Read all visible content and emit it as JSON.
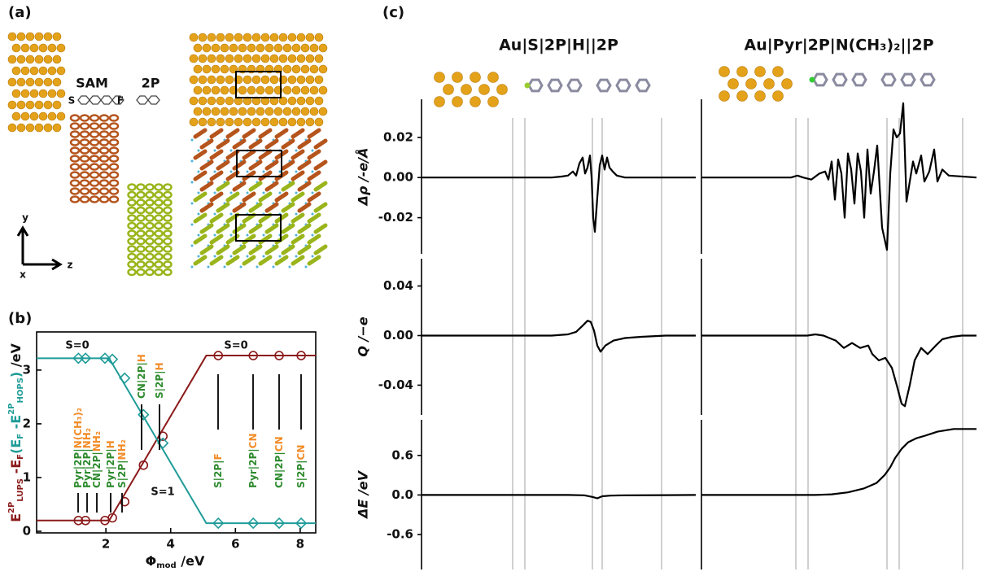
{
  "panel_labels": [
    "(a)",
    "(b)",
    "(c)"
  ],
  "panel_a": {
    "sam": "SAM",
    "two_p": "2P",
    "s_atom": "S",
    "f_atom": "F",
    "axes": [
      "y",
      "z",
      "x"
    ]
  },
  "chart_data": [
    {
      "type": "scatter",
      "xlabel_parts": [
        {
          "text": "Φ",
          "style": ""
        },
        {
          "text": "mod",
          "style": "sub"
        },
        {
          "text": " /eV",
          "style": ""
        }
      ],
      "ylabel_parts": [
        {
          "text": "E",
          "style": "",
          "color": "#8b1a1a"
        },
        {
          "text": "2P",
          "style": "sup",
          "color": "#8b1a1a"
        },
        {
          "text": "LUPS",
          "style": "sub",
          "color": "#8b1a1a"
        },
        {
          "text": " -E",
          "style": "",
          "color": "#8b1a1a"
        },
        {
          "text": "F",
          "style": "sub",
          "color": "#8b1a1a"
        },
        {
          "text": "(E",
          "style": "",
          "color": "#1f9c98"
        },
        {
          "text": "F",
          "style": "sub",
          "color": "#1f9c98"
        },
        {
          "text": " -E",
          "style": "",
          "color": "#1f9c98"
        },
        {
          "text": "2P",
          "style": "sup",
          "color": "#1f9c98"
        },
        {
          "text": "HOPS",
          "style": "sub",
          "color": "#1f9c98"
        },
        {
          "text": ")",
          "style": "",
          "color": "#1f9c98"
        },
        {
          "text": " /eV",
          "style": "",
          "color": "#111111"
        }
      ],
      "xlim": [
        -0.14,
        8.48
      ],
      "ylim": [
        -0.03,
        3.71
      ],
      "xticks": [
        2,
        4,
        6,
        8
      ],
      "yticks": [
        0,
        1,
        2,
        3
      ],
      "series": [
        {
          "color": "#8b1a1a",
          "marker": "circle",
          "x": [
            1.15,
            1.37,
            1.97,
            2.2,
            2.58,
            3.16,
            3.76,
            5.47,
            6.55,
            7.35,
            8.03
          ],
          "values": [
            0.2,
            0.2,
            0.2,
            0.25,
            0.55,
            1.23,
            1.77,
            3.27,
            3.27,
            3.27,
            3.27
          ]
        },
        {
          "color": "#1f9c98",
          "marker": "diamond",
          "x": [
            1.15,
            1.37,
            1.97,
            2.2,
            2.58,
            3.16,
            3.76,
            5.47,
            6.55,
            7.35,
            8.03
          ],
          "values": [
            3.22,
            3.22,
            3.22,
            3.2,
            2.85,
            2.17,
            1.64,
            0.15,
            0.15,
            0.15,
            0.15
          ]
        }
      ],
      "fit_lines": [
        {
          "color": "#8b1a1a",
          "x": [
            -0.14,
            2.1,
            5.1,
            8.48
          ],
          "values": [
            0.2,
            0.2,
            3.27,
            3.27
          ]
        },
        {
          "color": "#1f9c98",
          "x": [
            -0.14,
            2.1,
            5.1,
            8.48
          ],
          "values": [
            3.22,
            3.22,
            0.15,
            0.15
          ]
        }
      ],
      "annotations": [
        "S=0",
        "S=0",
        "S=1"
      ],
      "labels": [
        [
          {
            "text": "Pyr|2P|",
            "color": "#2e8b2e"
          },
          {
            "text": "N(CH₃)₂",
            "color": "#f28c28"
          }
        ],
        [
          {
            "text": "Pyr|2P|",
            "color": "#2e8b2e"
          },
          {
            "text": "NH₂",
            "color": "#f28c28"
          }
        ],
        [
          {
            "text": "CN|2P|",
            "color": "#2e8b2e"
          },
          {
            "text": "NH₂",
            "color": "#f28c28"
          }
        ],
        [
          {
            "text": "Pyr|2P|",
            "color": "#2e8b2e"
          },
          {
            "text": "H",
            "color": "#f28c28"
          }
        ],
        [
          {
            "text": "S|2P|",
            "color": "#2e8b2e"
          },
          {
            "text": "NH₂",
            "color": "#f28c28"
          }
        ],
        [
          {
            "text": "CN|2P|",
            "color": "#2e8b2e"
          },
          {
            "text": "H",
            "color": "#f28c28"
          }
        ],
        [
          {
            "text": "S|2P|",
            "color": "#2e8b2e"
          },
          {
            "text": "H",
            "color": "#f28c28"
          }
        ],
        [
          {
            "text": "S|2P|",
            "color": "#2e8b2e"
          },
          {
            "text": "F",
            "color": "#f28c28"
          }
        ],
        [
          {
            "text": "Pyr|2P|",
            "color": "#2e8b2e"
          },
          {
            "text": "CN",
            "color": "#f28c28"
          }
        ],
        [
          {
            "text": "CN|2P|",
            "color": "#2e8b2e"
          },
          {
            "text": "CN",
            "color": "#f28c28"
          }
        ],
        [
          {
            "text": "S|2P|",
            "color": "#2e8b2e"
          },
          {
            "text": "CN",
            "color": "#f28c28"
          }
        ]
      ]
    },
    {
      "type": "line",
      "title": "Au|S|2P|H||2P",
      "ylabel": "Δρ /-e/Å",
      "color": "#000000",
      "xlim": [
        0,
        337
      ],
      "ylim": [
        -0.038,
        0.039
      ],
      "yticks": [
        0.02,
        {
          "value": 0,
          "label": "0.00"
        },
        -0.02
      ],
      "x": [
        0,
        160,
        172,
        180,
        186,
        190,
        194,
        198,
        201,
        204,
        207,
        209,
        211,
        213,
        216,
        219,
        222,
        225,
        228,
        231,
        235,
        240,
        250,
        337
      ],
      "values": [
        0,
        0,
        0.0005,
        0.001,
        0.003,
        0.001,
        0.007,
        0.01,
        0.002,
        0.005,
        0.011,
        0,
        -0.02,
        -0.027,
        -0.01,
        0.006,
        0.011,
        0.004,
        0.01,
        0.005,
        0.003,
        0.001,
        0,
        0
      ]
    },
    {
      "type": "line",
      "title": "Au|Pyr|2P|N(CH₃)₂||2P",
      "color": "#000000",
      "xlim": [
        0,
        338
      ],
      "ylim": [
        -0.038,
        0.039
      ],
      "x": [
        0,
        110,
        118,
        125,
        135,
        145,
        152,
        156,
        160,
        164,
        168,
        172,
        176,
        180,
        184,
        188,
        192,
        196,
        200,
        204,
        208,
        212,
        216,
        222,
        228,
        232,
        236,
        240,
        244,
        248,
        252,
        256,
        260,
        264,
        270,
        274,
        280,
        286,
        290,
        296,
        304,
        338
      ],
      "values": [
        0,
        0,
        0.001,
        0,
        -0.001,
        0.002,
        0.003,
        -0.001,
        0.008,
        -0.011,
        0.009,
        0.002,
        -0.02,
        0.012,
        0.004,
        -0.013,
        0.012,
        0.003,
        -0.02,
        0.014,
        -0.008,
        0.003,
        0.016,
        -0.025,
        -0.036,
        0.002,
        0.024,
        0.02,
        0.022,
        0.037,
        -0.012,
        -0.002,
        0.008,
        0.002,
        0.011,
        -0.002,
        0.003,
        0.014,
        -0.002,
        0.004,
        0.001,
        0
      ]
    },
    {
      "type": "line",
      "ylabel": "Q /−e",
      "color": "#000000",
      "xlim": [
        0,
        337
      ],
      "ylim": [
        -0.064,
        0.062
      ],
      "yticks": [
        0.04,
        {
          "value": 0,
          "label": "0.00"
        },
        -0.04
      ],
      "x": [
        0,
        160,
        180,
        190,
        198,
        204,
        208,
        212,
        216,
        220,
        226,
        236,
        250,
        270,
        300,
        337
      ],
      "values": [
        0,
        0,
        0.001,
        0.003,
        0.008,
        0.012,
        0.011,
        0.004,
        -0.008,
        -0.013,
        -0.008,
        -0.004,
        -0.002,
        -0.001,
        0,
        0
      ]
    },
    {
      "type": "line",
      "color": "#000000",
      "xlim": [
        0,
        338
      ],
      "ylim": [
        -0.064,
        0.062
      ],
      "x": [
        0,
        130,
        140,
        150,
        165,
        175,
        185,
        195,
        205,
        210,
        218,
        226,
        234,
        240,
        246,
        250,
        256,
        262,
        270,
        278,
        288,
        296,
        308,
        320,
        338
      ],
      "values": [
        0,
        0,
        0.001,
        0,
        -0.004,
        -0.01,
        -0.006,
        -0.01,
        -0.008,
        -0.015,
        -0.02,
        -0.018,
        -0.026,
        -0.04,
        -0.055,
        -0.057,
        -0.04,
        -0.02,
        -0.01,
        -0.015,
        -0.008,
        -0.003,
        -0.001,
        0,
        0
      ]
    },
    {
      "type": "line",
      "ylabel": "ΔE /eV",
      "color": "#000000",
      "xlim": [
        0,
        337
      ],
      "ylim": [
        -1.13,
        1.14
      ],
      "yticks": [
        0.6,
        {
          "value": 0,
          "label": "0.0"
        },
        -0.6
      ],
      "x": [
        0,
        180,
        200,
        210,
        216,
        222,
        232,
        250,
        300,
        337
      ],
      "values": [
        0,
        0,
        -0.005,
        -0.03,
        -0.05,
        -0.02,
        -0.01,
        -0.005,
        -0.002,
        0
      ]
    },
    {
      "type": "line",
      "color": "#000000",
      "xlim": [
        0,
        338
      ],
      "ylim": [
        -1.13,
        1.14
      ],
      "x": [
        0,
        140,
        160,
        180,
        200,
        215,
        225,
        232,
        238,
        246,
        254,
        264,
        275,
        290,
        310,
        338
      ],
      "values": [
        0,
        0,
        0.01,
        0.04,
        0.1,
        0.18,
        0.3,
        0.42,
        0.56,
        0.7,
        0.8,
        0.86,
        0.9,
        0.96,
        1.0,
        1.0
      ]
    }
  ]
}
